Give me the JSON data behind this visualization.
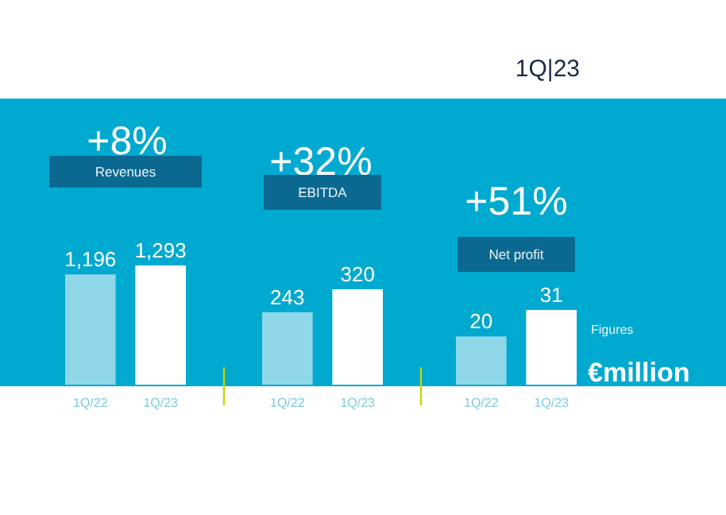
{
  "chart_data": [
    {
      "type": "bar",
      "title": "Revenues",
      "subtitle": "+8%",
      "categories": [
        "1Q/22",
        "1Q/23"
      ],
      "values": [
        1196,
        1293
      ],
      "colors": [
        "#8fd8ea",
        "#ffffff"
      ],
      "value_labels": [
        "1,196",
        "1,293"
      ],
      "annotations": [
        "1Q|23"
      ]
    },
    {
      "type": "bar",
      "title": "EBITDA",
      "subtitle": "+32%",
      "categories": [
        "1Q/22",
        "1Q/23"
      ],
      "values": [
        243,
        320
      ],
      "colors": [
        "#8fd8ea",
        "#ffffff"
      ],
      "data_labels": true
    },
    {
      "type": "bar",
      "title": "Net profit",
      "subtitle": "+51%",
      "categories": [
        "1Q/22",
        "1Q/23"
      ],
      "values": [
        20,
        31
      ],
      "colors": [
        "#8fd8ea",
        "#ffffff"
      ],
      "data_labels": true,
      "annotations": [
        "Figures",
        "€million"
      ]
    }
  ]
}
